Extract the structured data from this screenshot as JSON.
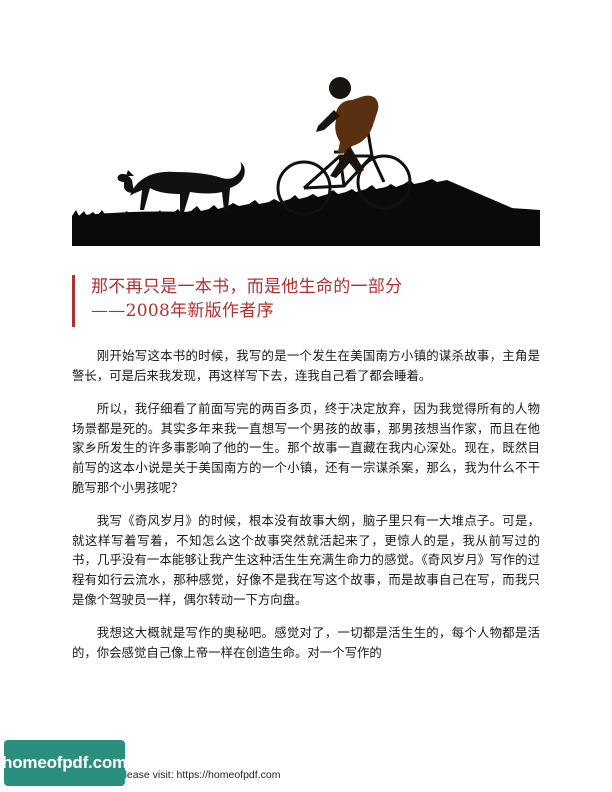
{
  "heading": {
    "line1": "那不再只是一本书，而是他生命的一部分",
    "line2": "——2008年新版作者序",
    "accent_color": "#b03030"
  },
  "paragraphs": [
    "刚开始写这本书的时候，我写的是一个发生在美国南方小镇的谋杀故事，主角是警长，可是后来我发现，再这样写下去，连我自己看了都会睡着。",
    "所以，我仔细看了前面写完的两百多页，终于决定放弃，因为我觉得所有的人物场景都是死的。其实多年来我一直想写一个男孩的故事，那男孩想当作家，而且在他家乡所发生的许多事影响了他的一生。那个故事一直藏在我内心深处。现在，既然目前写的这本小说是关于美国南方的一个小镇，还有一宗谋杀案，那么，我为什么不干脆写那个小男孩呢？",
    "我写《奇风岁月》的时候，根本没有故事大纲，脑子里只有一大堆点子。可是，就这样写着写着，不知怎么这个故事突然就活起来了，更惊人的是，我从前写过的书，几乎没有一本能够让我产生这种活生生充满生命力的感觉。《奇风岁月》写作的过程有如行云流水，那种感觉，好像不是我在写这个故事，而是故事自己在写，而我只是像个驾驶员一样，偶尔转动一下方向盘。",
    "我想这大概就是写作的奥秘吧。感觉对了，一切都是活生生的，每个人物都是活的，你会感觉自己像上帝一样在创造生命。对一个写作的"
  ],
  "footer": {
    "logo_text": "homeofpdf.com",
    "visit_prefix": "e please visit: ",
    "visit_link": "https://homeofpdf.com",
    "logo_color": "#2a8f7c"
  }
}
